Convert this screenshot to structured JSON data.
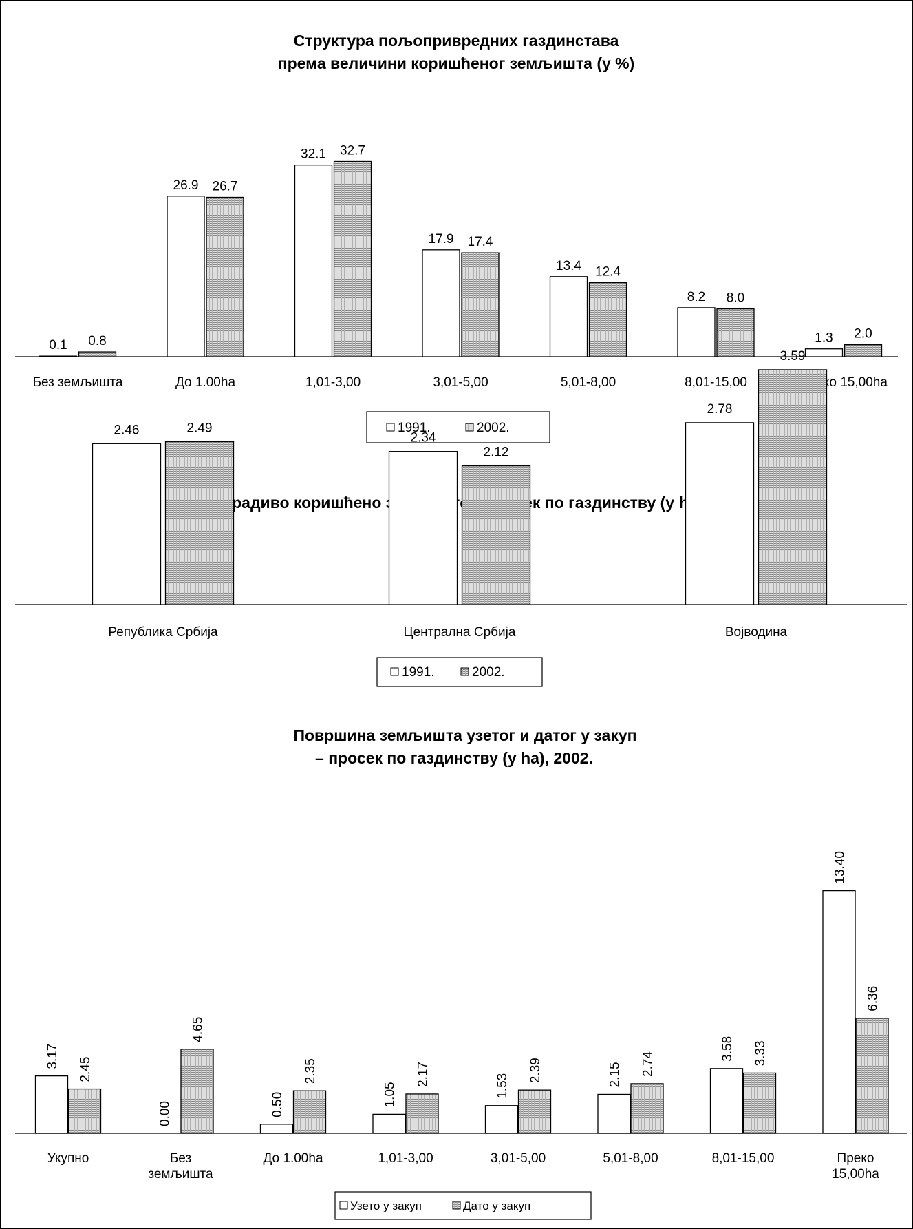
{
  "colors": {
    "series_1991": "#ffffff",
    "series_2002": "#cccccc",
    "axis": "#000000",
    "border": "#000000"
  },
  "chart_data": [
    {
      "type": "bar",
      "title": [
        "Структура пољопривредних газдинстава",
        "према величини коришћеног земљишта (у %)"
      ],
      "categories": [
        "Без земљишта",
        "До 1.00ha",
        "1,01-3,00",
        "3,01-5,00",
        "5,01-8,00",
        "8,01-15,00",
        "Преко 15,00ha"
      ],
      "series": [
        {
          "name": "1991.",
          "values": [
            0.1,
            26.9,
            32.1,
            17.9,
            13.4,
            8.2,
            1.3
          ],
          "labels": [
            "0.1",
            "26.9",
            "32.1",
            "17.9",
            "13.4",
            "8.2",
            "1.3"
          ]
        },
        {
          "name": "2002.",
          "values": [
            0.8,
            26.7,
            32.7,
            17.4,
            12.4,
            8.0,
            2.0
          ],
          "labels": [
            "0.8",
            "26.7",
            "32.7",
            "17.4",
            "12.4",
            "8.0",
            "2.0"
          ]
        }
      ],
      "ylim": [
        0,
        36.6
      ],
      "grid": false,
      "legend": "bottom-center"
    },
    {
      "type": "bar",
      "title": [
        "Обрадиво коришћено земљиште – просек по газдинству (у ha)"
      ],
      "categories": [
        "Република Србија",
        "Централна Србија",
        "Војводина"
      ],
      "series": [
        {
          "name": "1991.",
          "values": [
            2.46,
            2.34,
            2.78
          ],
          "labels": [
            "2.46",
            "2.34",
            "2.78"
          ]
        },
        {
          "name": "2002.",
          "values": [
            2.49,
            2.12,
            3.59
          ],
          "labels": [
            "2.49",
            "2.12",
            "3.59"
          ]
        }
      ],
      "ylim": [
        0,
        3.7
      ],
      "grid": false,
      "legend": "bottom-center"
    },
    {
      "type": "bar",
      "title": [
        "Површина земљишта узетог и датог у закуп",
        "– просек по газдинству (у ha), 2002."
      ],
      "categories": [
        [
          "Укупно"
        ],
        [
          "Без",
          "земљишта"
        ],
        [
          "До 1.00ha"
        ],
        [
          "1,01-3,00"
        ],
        [
          "3,01-5,00"
        ],
        [
          "5,01-8,00"
        ],
        [
          "8,01-15,00"
        ],
        [
          "Преко",
          "15,00ha"
        ]
      ],
      "series": [
        {
          "name": "Узето у закуп",
          "values": [
            3.17,
            0.0,
            0.5,
            1.05,
            1.53,
            2.15,
            3.58,
            13.4
          ],
          "labels": [
            "3.17",
            "0.00",
            "0.50",
            "1.05",
            "1.53",
            "2.15",
            "3.58",
            "13.40"
          ]
        },
        {
          "name": "Дато у закуп",
          "values": [
            2.45,
            4.65,
            2.35,
            2.17,
            2.39,
            2.74,
            3.33,
            6.36
          ],
          "labels": [
            "2.45",
            "4.65",
            "2.35",
            "2.17",
            "2.39",
            "2.74",
            "3.33",
            "6.36"
          ]
        }
      ],
      "ylim": [
        0,
        14.2
      ],
      "grid": false,
      "legend": "bottom-center",
      "data_label_orientation": "vertical"
    }
  ]
}
